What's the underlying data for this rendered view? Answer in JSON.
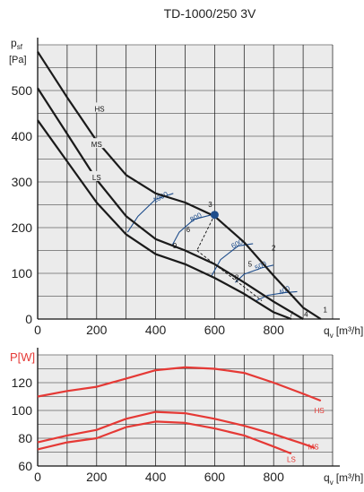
{
  "title": "TD-1000/250 3V",
  "chart_data": [
    {
      "type": "line",
      "id": "pressure",
      "ylabel_main": "p",
      "ylabel_sub": "sf",
      "yunit": "[Pa]",
      "xlabel_main": "q",
      "xlabel_sub": "v",
      "xunit": "[m³/h]",
      "xlim": [
        0,
        1000
      ],
      "ylim": [
        0,
        600
      ],
      "xticks": [
        0,
        200,
        400,
        600,
        800
      ],
      "yticks": [
        0,
        100,
        200,
        300,
        400,
        500
      ],
      "grid": true,
      "series": [
        {
          "name": "HS",
          "color": "#1a1a1a",
          "x": [
            0,
            100,
            200,
            300,
            400,
            500,
            600,
            700,
            800,
            900,
            960
          ],
          "y": [
            585,
            485,
            390,
            315,
            275,
            255,
            225,
            168,
            95,
            25,
            0
          ]
        },
        {
          "name": "MS",
          "color": "#1a1a1a",
          "x": [
            0,
            100,
            200,
            300,
            400,
            500,
            600,
            700,
            800,
            900
          ],
          "y": [
            505,
            405,
            305,
            225,
            175,
            150,
            120,
            80,
            38,
            0
          ]
        },
        {
          "name": "LS",
          "color": "#1a1a1a",
          "x": [
            0,
            100,
            200,
            300,
            400,
            500,
            600,
            700,
            800,
            860
          ],
          "y": [
            435,
            345,
            255,
            185,
            142,
            120,
            90,
            55,
            15,
            0
          ]
        }
      ],
      "curve_labels": [
        {
          "text": "HS",
          "x": 210,
          "y": 460
        },
        {
          "text": "MS",
          "x": 200,
          "y": 382
        },
        {
          "text": "LS",
          "x": 200,
          "y": 310
        }
      ],
      "installation_curves": {
        "color": "#1f4e8c",
        "labels": [
          {
            "text": "1000",
            "x": 420,
            "y": 262
          },
          {
            "text": "800",
            "x": 540,
            "y": 218
          },
          {
            "text": "600",
            "x": 680,
            "y": 160
          },
          {
            "text": "500",
            "x": 760,
            "y": 112
          },
          {
            "text": "400",
            "x": 840,
            "y": 58
          }
        ],
        "arcs": [
          {
            "x": [
              305,
              340,
              400,
              460
            ],
            "y": [
              190,
              225,
              262,
              275
            ]
          },
          {
            "x": [
              455,
              480,
              530,
              590
            ],
            "y": [
              160,
              190,
              218,
              228
            ]
          },
          {
            "x": [
              590,
              620,
              680,
              730
            ],
            "y": [
              95,
              130,
              160,
              165
            ]
          },
          {
            "x": [
              670,
              700,
              760,
              800
            ],
            "y": [
              80,
              98,
              112,
              118
            ]
          },
          {
            "x": [
              740,
              780,
              840,
              880
            ],
            "y": [
              40,
              52,
              58,
              60
            ]
          }
        ]
      },
      "operating_point": {
        "x": 600,
        "y": 228,
        "color": "#1f4e8c"
      },
      "operating_lines": [
        {
          "x1": 600,
          "y1": 228,
          "x2": 540,
          "y2": 150
        },
        {
          "x1": 540,
          "y1": 150,
          "x2": 760,
          "y2": 40
        }
      ],
      "point_labels": [
        {
          "text": "1",
          "x": 975,
          "y": 15
        },
        {
          "text": "2",
          "x": 800,
          "y": 150
        },
        {
          "text": "3",
          "x": 585,
          "y": 245
        },
        {
          "text": "4",
          "x": 910,
          "y": 5
        },
        {
          "text": "5",
          "x": 720,
          "y": 115
        },
        {
          "text": "6",
          "x": 510,
          "y": 190
        },
        {
          "text": "7",
          "x": 860,
          "y": 5
        },
        {
          "text": "8",
          "x": 675,
          "y": 85
        },
        {
          "text": "9",
          "x": 465,
          "y": 155
        }
      ]
    },
    {
      "type": "line",
      "id": "power",
      "ylabel": "P[W]",
      "xlabel_main": "q",
      "xlabel_sub": "v",
      "xunit": "[m³/h]",
      "xlim": [
        0,
        1000
      ],
      "ylim": [
        60,
        140
      ],
      "xticks": [
        0,
        200,
        400,
        600,
        800
      ],
      "yticks": [
        60,
        80,
        100,
        120
      ],
      "grid": true,
      "series": [
        {
          "name": "HS",
          "color": "#e53935",
          "x": [
            0,
            100,
            200,
            300,
            400,
            500,
            600,
            700,
            800,
            900,
            960
          ],
          "y": [
            110,
            114,
            117,
            123,
            129,
            131,
            130,
            127,
            120,
            112,
            107
          ]
        },
        {
          "name": "MS",
          "color": "#e53935",
          "x": [
            0,
            100,
            200,
            300,
            400,
            500,
            600,
            700,
            800,
            900,
            940
          ],
          "y": [
            77,
            82,
            86,
            94,
            99,
            98,
            94,
            89,
            83,
            76,
            73
          ]
        },
        {
          "name": "LS",
          "color": "#e53935",
          "x": [
            0,
            100,
            200,
            300,
            400,
            500,
            600,
            700,
            800,
            860
          ],
          "y": [
            72,
            77,
            80,
            88,
            92,
            91,
            87,
            82,
            74,
            69
          ]
        }
      ],
      "curve_labels": [
        {
          "text": "HS",
          "x": 955,
          "y": 100
        },
        {
          "text": "MS",
          "x": 935,
          "y": 74
        },
        {
          "text": "LS",
          "x": 860,
          "y": 65
        }
      ]
    }
  ]
}
